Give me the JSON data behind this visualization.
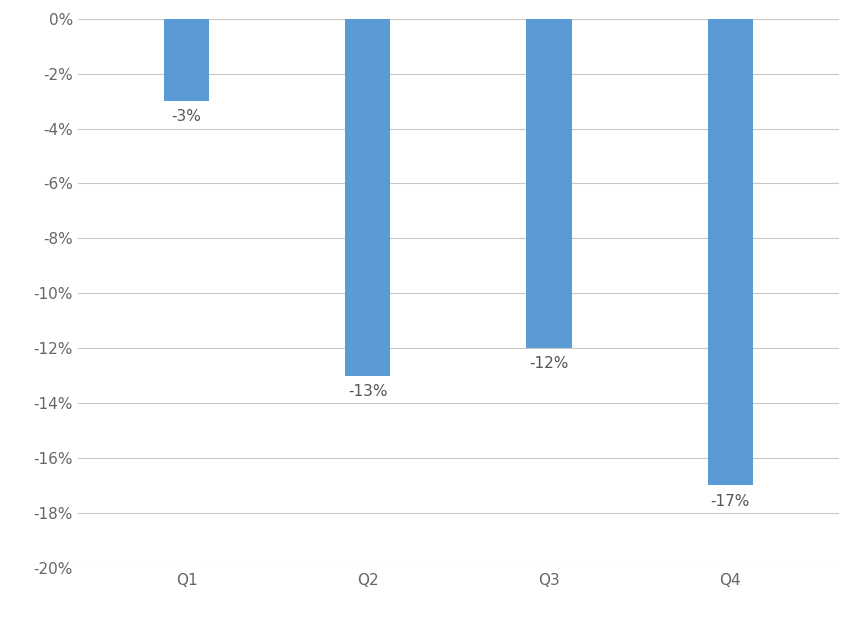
{
  "categories": [
    "Q1",
    "Q2",
    "Q3",
    "Q4"
  ],
  "values": [
    -3,
    -13,
    -12,
    -17
  ],
  "labels": [
    "-3%",
    "-13%",
    "-12%",
    "-17%"
  ],
  "bar_color": "#5B9BD5",
  "ylim": [
    -20,
    0
  ],
  "yticks": [
    0,
    -2,
    -4,
    -6,
    -8,
    -10,
    -12,
    -14,
    -16,
    -18,
    -20
  ],
  "background_color": "#ffffff",
  "grid_color": "#c8c8c8",
  "label_fontsize": 11,
  "tick_fontsize": 11,
  "bar_width": 0.25
}
